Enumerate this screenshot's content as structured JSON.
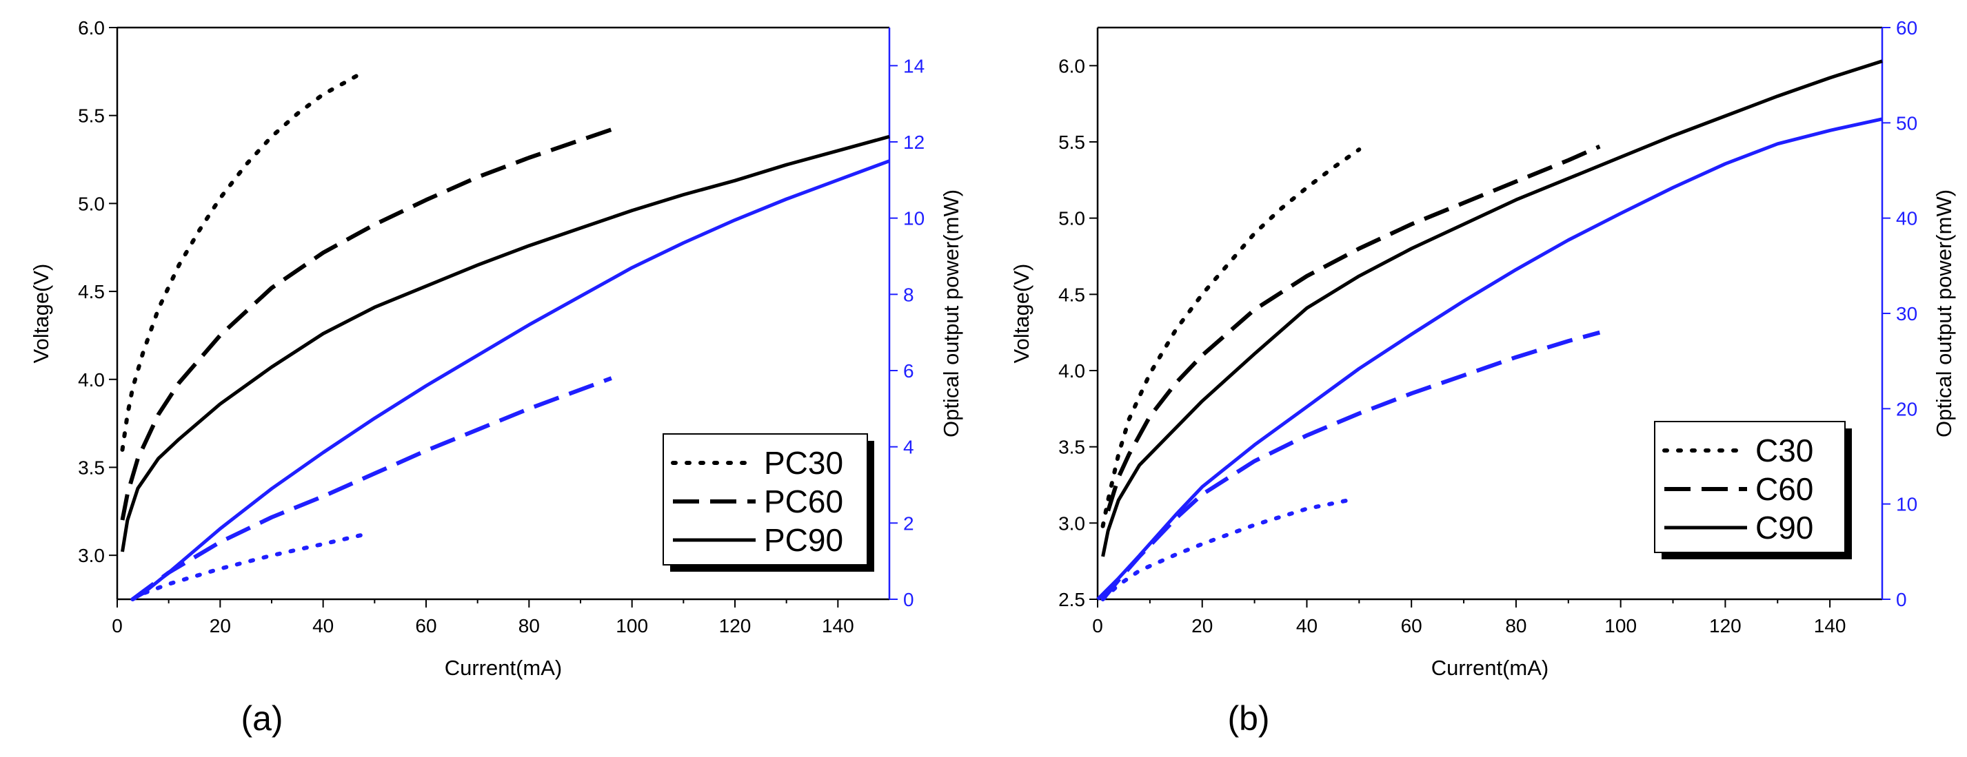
{
  "colors": {
    "left_axis": "#000000",
    "right_axis": "#1f1fff",
    "series_voltage": "#000000",
    "series_power": "#1f1fff"
  },
  "chart_data": [
    {
      "type": "line",
      "panel_label": "(a)",
      "xlabel": "Current(mA)",
      "ylabel": "Voltage(V)",
      "y2label": "Optical output power(mW)",
      "xlim": [
        0,
        150
      ],
      "ylim": [
        2.75,
        6.0
      ],
      "y2lim": [
        0,
        15
      ],
      "x_ticks": [
        0,
        20,
        40,
        60,
        80,
        100,
        120,
        140
      ],
      "y_ticks": [
        3.0,
        3.5,
        4.0,
        4.5,
        5.0,
        5.5,
        6.0
      ],
      "y2_ticks": [
        0,
        2,
        4,
        6,
        8,
        10,
        12,
        14
      ],
      "legend": [
        "PC30",
        "PC60",
        "PC90"
      ],
      "legend_styles": [
        "dotted",
        "dashed",
        "solid"
      ],
      "series": [
        {
          "name": "PC30",
          "axis": "left",
          "style": "dotted",
          "x": [
            1,
            2,
            3,
            5,
            8,
            12,
            16,
            20,
            25,
            30,
            35,
            40,
            45,
            48
          ],
          "y": [
            3.6,
            3.8,
            3.95,
            4.15,
            4.4,
            4.65,
            4.85,
            5.03,
            5.22,
            5.38,
            5.51,
            5.62,
            5.7,
            5.75
          ]
        },
        {
          "name": "PC60",
          "axis": "left",
          "style": "dashed",
          "x": [
            1,
            2,
            4,
            8,
            12,
            20,
            30,
            40,
            50,
            60,
            70,
            80,
            90,
            96
          ],
          "y": [
            3.2,
            3.35,
            3.55,
            3.8,
            3.98,
            4.25,
            4.52,
            4.72,
            4.88,
            5.02,
            5.15,
            5.26,
            5.36,
            5.42
          ]
        },
        {
          "name": "PC90",
          "axis": "left",
          "style": "solid",
          "x": [
            1,
            2,
            4,
            8,
            12,
            20,
            30,
            40,
            50,
            60,
            70,
            80,
            90,
            100,
            110,
            120,
            130,
            140,
            150
          ],
          "y": [
            3.02,
            3.2,
            3.38,
            3.55,
            3.66,
            3.86,
            4.07,
            4.26,
            4.41,
            4.53,
            4.65,
            4.76,
            4.86,
            4.96,
            5.05,
            5.13,
            5.22,
            5.3,
            5.38
          ]
        },
        {
          "name": "PC30 power",
          "axis": "right",
          "style": "dotted",
          "x": [
            3,
            5,
            10,
            20,
            30,
            40,
            48
          ],
          "y": [
            0,
            0.15,
            0.4,
            0.8,
            1.15,
            1.45,
            1.7
          ]
        },
        {
          "name": "PC60 power",
          "axis": "right",
          "style": "dashed",
          "x": [
            3,
            5,
            10,
            20,
            30,
            40,
            50,
            60,
            70,
            80,
            90,
            96
          ],
          "y": [
            0,
            0.2,
            0.7,
            1.5,
            2.15,
            2.7,
            3.3,
            3.9,
            4.45,
            5.0,
            5.5,
            5.8
          ]
        },
        {
          "name": "PC90 power",
          "axis": "right",
          "style": "solid",
          "x": [
            3,
            5,
            10,
            20,
            30,
            40,
            50,
            60,
            70,
            80,
            90,
            100,
            110,
            120,
            130,
            140,
            150
          ],
          "y": [
            0,
            0.15,
            0.7,
            1.85,
            2.9,
            3.85,
            4.75,
            5.6,
            6.4,
            7.2,
            7.95,
            8.7,
            9.35,
            9.95,
            10.5,
            11.0,
            11.5
          ]
        }
      ]
    },
    {
      "type": "line",
      "panel_label": "(b)",
      "xlabel": "Current(mA)",
      "ylabel": "Voltage(V)",
      "y2label": "Optical output power(mW)",
      "xlim": [
        0,
        150
      ],
      "ylim": [
        2.5,
        6.25
      ],
      "y2lim": [
        0,
        60
      ],
      "x_ticks": [
        0,
        20,
        40,
        60,
        80,
        100,
        120,
        140
      ],
      "y_ticks": [
        2.5,
        3.0,
        3.5,
        4.0,
        4.5,
        5.0,
        5.5,
        6.0
      ],
      "y2_ticks": [
        0,
        10,
        20,
        30,
        40,
        50,
        60
      ],
      "legend": [
        "C30",
        "C60",
        "C90"
      ],
      "legend_styles": [
        "dotted",
        "dashed",
        "solid"
      ],
      "series": [
        {
          "name": "C30",
          "axis": "left",
          "style": "dotted",
          "x": [
            1,
            2,
            4,
            6,
            10,
            15,
            20,
            25,
            30,
            35,
            40,
            45,
            50
          ],
          "y": [
            2.98,
            3.15,
            3.45,
            3.68,
            3.98,
            4.27,
            4.5,
            4.7,
            4.9,
            5.06,
            5.2,
            5.33,
            5.45
          ]
        },
        {
          "name": "C60",
          "axis": "left",
          "style": "dashed",
          "x": [
            2,
            4,
            6,
            10,
            15,
            20,
            30,
            40,
            50,
            60,
            70,
            80,
            90,
            96
          ],
          "y": [
            3.08,
            3.3,
            3.45,
            3.7,
            3.92,
            4.1,
            4.4,
            4.62,
            4.8,
            4.96,
            5.1,
            5.24,
            5.38,
            5.47
          ]
        },
        {
          "name": "C90",
          "axis": "left",
          "style": "solid",
          "x": [
            1,
            2,
            4,
            8,
            12,
            20,
            30,
            40,
            50,
            60,
            70,
            80,
            90,
            100,
            110,
            120,
            130,
            140,
            150
          ],
          "y": [
            2.78,
            2.95,
            3.15,
            3.38,
            3.52,
            3.8,
            4.11,
            4.41,
            4.62,
            4.8,
            4.96,
            5.12,
            5.26,
            5.4,
            5.54,
            5.67,
            5.8,
            5.92,
            6.03
          ]
        },
        {
          "name": "C30 power",
          "axis": "right",
          "style": "dotted",
          "x": [
            1,
            4,
            8,
            15,
            20,
            30,
            40,
            48
          ],
          "y": [
            0,
            1.5,
            3.0,
            4.7,
            5.8,
            7.8,
            9.5,
            10.4
          ]
        },
        {
          "name": "C60 power",
          "axis": "right",
          "style": "dashed",
          "x": [
            1,
            4,
            8,
            15,
            20,
            30,
            40,
            50,
            60,
            70,
            80,
            90,
            96
          ],
          "y": [
            0,
            2.0,
            4.5,
            8.5,
            11.0,
            14.5,
            17.2,
            19.5,
            21.6,
            23.5,
            25.4,
            27.1,
            28.0
          ]
        },
        {
          "name": "C90 power",
          "axis": "right",
          "style": "solid",
          "x": [
            0,
            4,
            8,
            15,
            20,
            30,
            40,
            50,
            60,
            70,
            80,
            90,
            100,
            110,
            120,
            130,
            140,
            150
          ],
          "y": [
            0,
            2.2,
            4.6,
            8.9,
            11.8,
            16.2,
            20.2,
            24.2,
            27.8,
            31.3,
            34.6,
            37.7,
            40.5,
            43.2,
            45.7,
            47.8,
            49.2,
            50.4
          ]
        }
      ]
    }
  ]
}
